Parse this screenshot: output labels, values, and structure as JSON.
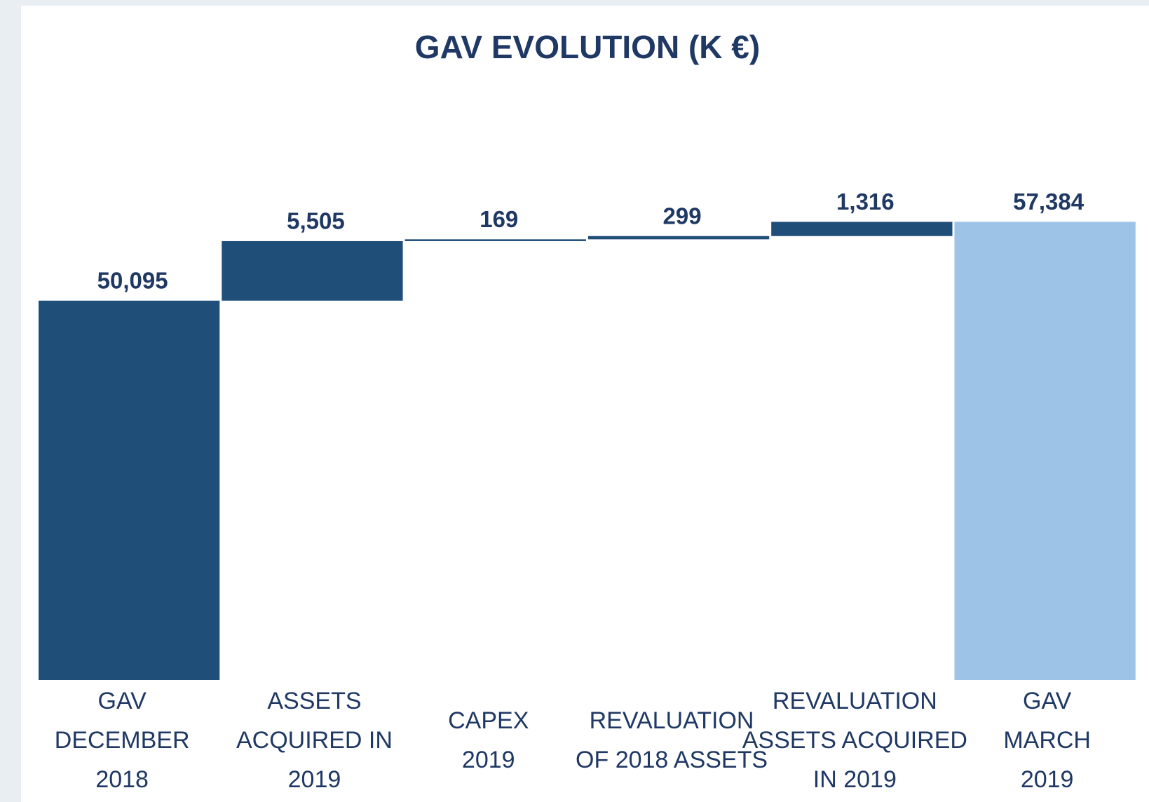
{
  "chart_data": {
    "type": "waterfall",
    "title": "GAV EVOLUTION (K €)",
    "categories": [
      [
        "GAV",
        "DECEMBER",
        "2018"
      ],
      [
        "ASSETS",
        "ACQUIRED IN",
        "2019"
      ],
      [
        "CAPEX",
        "2019"
      ],
      [
        "REVALUATION",
        "OF 2018 ASSETS"
      ],
      [
        "REVALUATION",
        "ASSETS ACQUIRED",
        "IN 2019"
      ],
      [
        "GAV",
        "MARCH",
        "2019"
      ]
    ],
    "values": [
      50095,
      5505,
      169,
      299,
      1316,
      57384
    ],
    "value_labels": [
      "50,095",
      "5,505",
      "169",
      "299",
      "1,316",
      "57,384"
    ],
    "measure": [
      "absolute",
      "relative",
      "relative",
      "relative",
      "relative",
      "total"
    ],
    "colors": [
      "#1f4e79",
      "#1f4e79",
      "#1f4e79",
      "#1f4e79",
      "#1f4e79",
      "#9dc3e6"
    ],
    "ylim": [
      15000,
      65000
    ]
  }
}
